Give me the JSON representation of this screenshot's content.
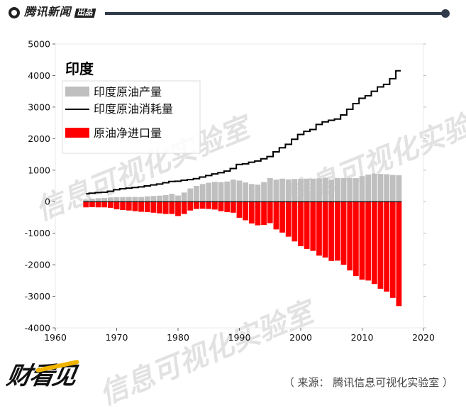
{
  "header": {
    "brand_name": "腾讯新闻",
    "brand_badge": "出品"
  },
  "footer": {
    "logo_text": "财看见",
    "source_text": "（ 来源：  腾讯信息可视化实验室 ）"
  },
  "watermark_text": "信息可视化实验室",
  "colors": {
    "production": "#c0bfc0",
    "imports": "#ff0000",
    "consumption": "#000000",
    "header_rule": "#303a4a"
  },
  "chart_data": {
    "type": "bar",
    "title": "印度",
    "xlabel": "",
    "ylabel": "",
    "xlim": [
      1960,
      2020
    ],
    "ylim": [
      -4000,
      5000
    ],
    "xticks": [
      1960,
      1970,
      1980,
      1990,
      2000,
      2010,
      2020
    ],
    "yticks": [
      -4000,
      -3000,
      -2000,
      -1000,
      0,
      1000,
      2000,
      3000,
      4000,
      5000
    ],
    "legend_placement": "top-left",
    "grid": false,
    "years": [
      1965,
      1966,
      1967,
      1968,
      1969,
      1970,
      1971,
      1972,
      1973,
      1974,
      1975,
      1976,
      1977,
      1978,
      1979,
      1980,
      1981,
      1982,
      1983,
      1984,
      1985,
      1986,
      1987,
      1988,
      1989,
      1990,
      1991,
      1992,
      1993,
      1994,
      1995,
      1996,
      1997,
      1998,
      1999,
      2000,
      2001,
      2002,
      2003,
      2004,
      2005,
      2006,
      2007,
      2008,
      2009,
      2010,
      2011,
      2012,
      2013,
      2014,
      2015,
      2016
    ],
    "series": [
      {
        "name": "印度原油产量",
        "type": "bar",
        "values": [
          65,
          95,
          110,
          120,
          135,
          140,
          145,
          150,
          150,
          150,
          170,
          180,
          190,
          210,
          250,
          195,
          290,
          420,
          500,
          560,
          600,
          630,
          620,
          640,
          700,
          670,
          610,
          560,
          540,
          620,
          750,
          700,
          730,
          710,
          720,
          720,
          730,
          730,
          740,
          760,
          700,
          750,
          750,
          750,
          750,
          810,
          860,
          890,
          880,
          870,
          850,
          840
        ]
      },
      {
        "name": "印度原油消耗量",
        "type": "step",
        "values": [
          250,
          270,
          290,
          300,
          330,
          380,
          410,
          430,
          450,
          470,
          500,
          530,
          560,
          600,
          640,
          650,
          680,
          700,
          730,
          780,
          830,
          880,
          920,
          970,
          1050,
          1180,
          1200,
          1250,
          1290,
          1360,
          1430,
          1580,
          1710,
          1820,
          1980,
          2130,
          2230,
          2290,
          2450,
          2530,
          2580,
          2620,
          2750,
          2930,
          3110,
          3280,
          3360,
          3500,
          3640,
          3720,
          3900,
          4150
        ]
      },
      {
        "name": "原油净进口量",
        "type": "bar",
        "values": [
          -180,
          -175,
          -180,
          -180,
          -195,
          -240,
          -265,
          -280,
          -300,
          -320,
          -330,
          -350,
          -370,
          -390,
          -390,
          -455,
          -390,
          -280,
          -230,
          -220,
          -230,
          -250,
          -300,
          -330,
          -350,
          -510,
          -590,
          -690,
          -750,
          -740,
          -680,
          -880,
          -980,
          -1110,
          -1260,
          -1410,
          -1500,
          -1560,
          -1710,
          -1770,
          -1880,
          -1870,
          -2000,
          -2180,
          -2360,
          -2470,
          -2500,
          -2610,
          -2760,
          -2850,
          -3050,
          -3310
        ]
      }
    ]
  }
}
